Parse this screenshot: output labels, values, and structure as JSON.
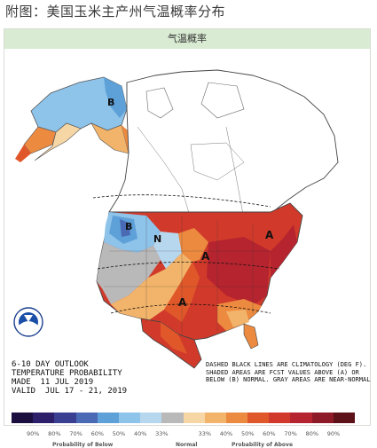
{
  "caption": "附图：美国玉米主产州气温概率分布",
  "panel_title": "气温概率",
  "outlook_lines": [
    "6-10 DAY OUTLOOK",
    "TEMPERATURE PROBABILITY",
    "MADE  11 JUL 2019",
    "VALID  JUL 17 - 21, 2019"
  ],
  "legend_note": "DASHED BLACK LINES ARE CLIMATOLOGY (DEG F). SHADED AREAS ARE FCST VALUES ABOVE (A) OR BELOW (B) NORMAL. GRAY AREAS ARE NEAR-NORMAL",
  "logo_text": "NOAA",
  "map_labels": {
    "alaska_b": "B",
    "northwest_b": "B",
    "north_n": "N",
    "central_a": "A",
    "east_a": "A",
    "south_a": "A"
  },
  "scale": {
    "colors": [
      "#1c0f3f",
      "#2d1f6a",
      "#3b3f92",
      "#4a6ab5",
      "#5ea0d8",
      "#8ec3ea",
      "#b7d7ef",
      "#b9b9b9",
      "#f6d6a5",
      "#f2b46a",
      "#ec8a40",
      "#e0582a",
      "#d13a2a",
      "#b5242f",
      "#8d1a26",
      "#5d1219"
    ],
    "labels": [
      "90%",
      "80%",
      "70%",
      "60%",
      "50%",
      "40%",
      "33%",
      "33%",
      "40%",
      "50%",
      "60%",
      "70%",
      "80%",
      "90%"
    ],
    "below_title": "Probability of Below",
    "normal_title": "Normal",
    "above_title": "Probability of Above"
  },
  "colors": {
    "header_bg": "#d9ebd2",
    "gray_normal": "#b9b9b9",
    "ocean": "#ffffff"
  }
}
